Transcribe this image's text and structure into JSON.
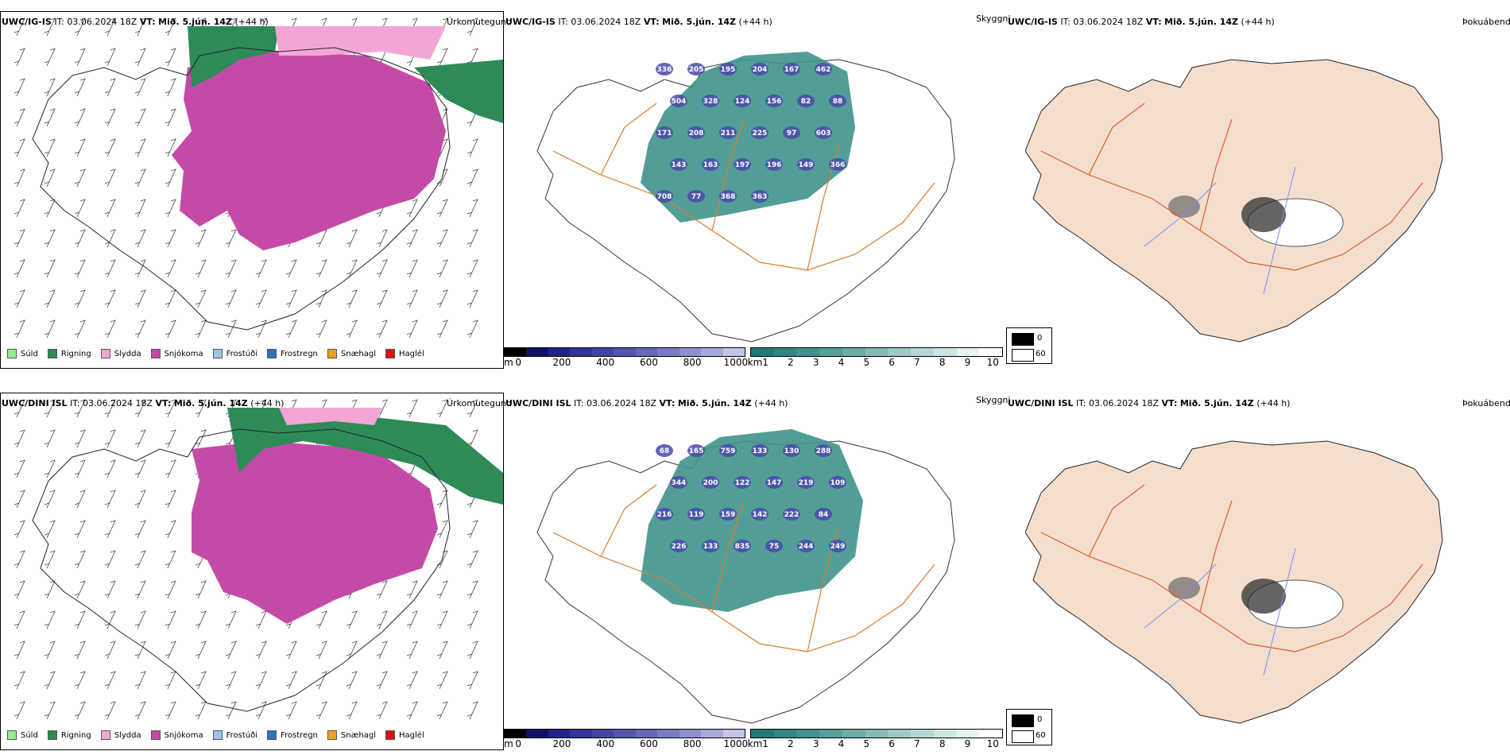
{
  "rows": [
    {
      "model": "UWC/IG-IS",
      "it_label": "IT:",
      "it_value": "03.06.2024 18Z",
      "vt_label": "VT:",
      "vt_value": "Mið. 5.jún. 14Z",
      "lead": "(+44 h)",
      "labels": [
        {
          "t": "336"
        },
        {
          "t": "205"
        },
        {
          "t": "195"
        },
        {
          "t": "204"
        },
        {
          "t": "167"
        },
        {
          "t": "462"
        },
        {
          "t": "504"
        },
        {
          "t": "328"
        },
        {
          "t": "124"
        },
        {
          "t": "156"
        },
        {
          "t": "82"
        },
        {
          "t": "88"
        },
        {
          "t": "171"
        },
        {
          "t": "208"
        },
        {
          "t": "211"
        },
        {
          "t": "225"
        },
        {
          "t": "97"
        },
        {
          "t": "603"
        },
        {
          "t": "143"
        },
        {
          "t": "163"
        },
        {
          "t": "197"
        },
        {
          "t": "196"
        },
        {
          "t": "149"
        },
        {
          "t": "366"
        },
        {
          "t": "708"
        },
        {
          "t": "77"
        },
        {
          "t": "368"
        },
        {
          "t": "363"
        }
      ]
    },
    {
      "model": "UWC/DINI ISL",
      "it_label": "IT:",
      "it_value": "03.06.2024 18Z",
      "vt_label": "VT:",
      "vt_value": "Mið. 5.jún. 14Z",
      "lead": "(+44 h)",
      "labels": [
        {
          "t": "68"
        },
        {
          "t": "165"
        },
        {
          "t": "759"
        },
        {
          "t": "133"
        },
        {
          "t": "130"
        },
        {
          "t": "288"
        },
        {
          "t": "344"
        },
        {
          "t": "200"
        },
        {
          "t": "122"
        },
        {
          "t": "147"
        },
        {
          "t": "219"
        },
        {
          "t": "109"
        },
        {
          "t": "216"
        },
        {
          "t": "119"
        },
        {
          "t": "159"
        },
        {
          "t": "142"
        },
        {
          "t": "222"
        },
        {
          "t": "84"
        },
        {
          "t": "226"
        },
        {
          "t": "133"
        },
        {
          "t": "835"
        },
        {
          "t": "75"
        },
        {
          "t": "244"
        },
        {
          "t": "249"
        }
      ]
    }
  ],
  "panel_titles": {
    "precip": "Úrkomutegund",
    "vis": "Skyggni",
    "fog": "Þokuábendi"
  },
  "precip_legend": [
    {
      "label": "Súld",
      "color": "#90ee90"
    },
    {
      "label": "Rigning",
      "color": "#2e8b57"
    },
    {
      "label": "Slydda",
      "color": "#f3a6d6"
    },
    {
      "label": "Snjókoma",
      "color": "#c54aa8"
    },
    {
      "label": "Frostúði",
      "color": "#9ac5f0"
    },
    {
      "label": "Frostregn",
      "color": "#3070c0"
    },
    {
      "label": "Snæhagl",
      "color": "#f0a020"
    },
    {
      "label": "Haglél",
      "color": "#e01010"
    }
  ],
  "ceiling_scale": {
    "unit": "m",
    "ticks": [
      "0",
      "200",
      "400",
      "600",
      "800",
      "1000"
    ],
    "colors": [
      "#000000",
      "#11116a",
      "#22228a",
      "#33339a",
      "#4444a6",
      "#5555b0",
      "#6767bb",
      "#7a7ac6",
      "#9090d0",
      "#a8a8da",
      "#c4c4e6"
    ]
  },
  "vis_scale": {
    "unit": "km",
    "ticks": [
      "1",
      "2",
      "3",
      "4",
      "5",
      "6",
      "7",
      "8",
      "9",
      "10"
    ],
    "colors": [
      "#1f7a75",
      "#2e8780",
      "#40938c",
      "#55a099",
      "#6cada6",
      "#84bbb5",
      "#9dc9c4",
      "#b6d8d4",
      "#cee6e3",
      "#e6f3f1",
      "#ffffff"
    ]
  },
  "fog_key": {
    "ticks": [
      "0",
      "60"
    ]
  },
  "colors": {
    "land": "#f4dfcf",
    "roads": "#e85a2a",
    "ocean": "#ffffff",
    "rivers": "#7a8ff0"
  }
}
